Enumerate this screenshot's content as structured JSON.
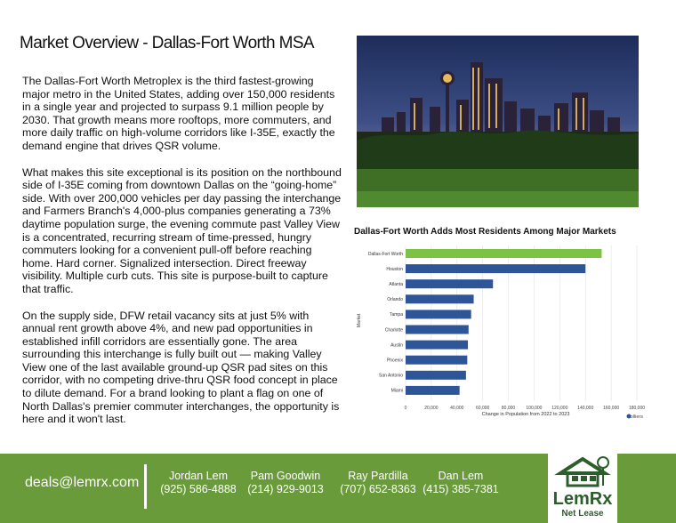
{
  "title": "Market Overview - Dallas-Fort Worth MSA",
  "paragraphs": [
    "The Dallas-Fort Worth Metroplex is the third fastest-growing major metro in the United States, adding over 150,000 residents in a single year and projected to surpass 9.1 million people by 2030. That growth means more rooftops, more commuters, and more daily traffic on high-volume corridors like I-35E, exactly the demand engine that drives QSR volume.",
    "What makes this site exceptional is its position on the northbound side of I-35E coming from downtown Dallas on the “going-home” side. With over 200,000 vehicles per day passing the interchange and Farmers Branch's 4,000-plus companies generating a 73% daytime population surge, the evening commute past Valley View is a concentrated, recurring stream of time-pressed, hungry commuters looking for a convenient pull-off before reaching home. Hard corner. Signalized intersection. Direct freeway visibility. Multiple curb cuts. This site is purpose-built to capture that traffic.",
    "On the supply side, DFW retail vacancy sits at just 5% with annual rent growth above 4%, and new pad opportunities in established infill corridors are essentially gone. The area surrounding this interchange is fully built out — making Valley View one of the last available ground-up QSR pad sites on this corridor, with no competing drive-thru QSR food concept in place to dilute demand. For a brand looking to plant a flag on one of North Dallas's premier commuter interchanges, the opportunity is here and it won't last."
  ],
  "chart_data": {
    "type": "bar",
    "orientation": "horizontal",
    "title": "Dallas-Fort Worth Adds Most Residents Among Major Markets",
    "xlabel": "Change in Population from 2022 to 2023",
    "ylabel": "Market",
    "categories": [
      "Dallas-Fort Worth",
      "Houston",
      "Atlanta",
      "Orlando",
      "Tampa",
      "Charlotte",
      "Austin",
      "Phoenix",
      "San Antonio",
      "Miami"
    ],
    "values": [
      152600,
      140000,
      68000,
      53000,
      51000,
      49000,
      48500,
      48000,
      47000,
      42000
    ],
    "highlight_color": "#7dc243",
    "bar_color": "#2e5597",
    "xlim": [
      0,
      180000
    ],
    "xticks": [
      "0",
      "20,000",
      "40,000",
      "60,000",
      "80,000",
      "100,000",
      "120,000",
      "140,000",
      "160,000",
      "180,000"
    ],
    "source": "Colliers"
  },
  "footer": {
    "email": "deals@lemrx.com",
    "contacts": [
      {
        "name": "Jordan Lem",
        "phone": "(925) 586-4888"
      },
      {
        "name": "Pam Goodwin",
        "phone": "(214) 929-9013"
      },
      {
        "name": "Ray Pardilla",
        "phone": "(707) 652-8363"
      },
      {
        "name": "Dan Lem",
        "phone": "(415) 385-7381"
      }
    ],
    "logo_name": "LemRx",
    "logo_sub": "Net Lease"
  }
}
